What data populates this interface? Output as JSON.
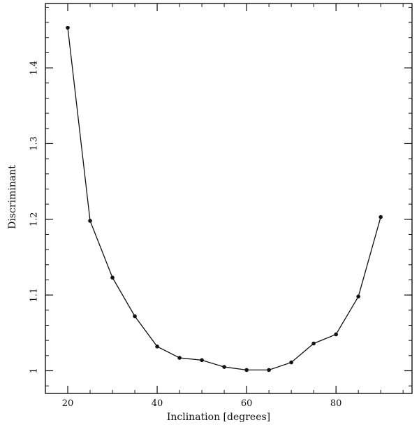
{
  "chart_data": {
    "type": "line",
    "title": "",
    "xlabel": "Inclination [degrees]",
    "ylabel": "Discriminant",
    "xlim": [
      15,
      97
    ],
    "ylim": [
      0.97,
      1.485
    ],
    "xticks": [
      20,
      40,
      60,
      80
    ],
    "xtick_labels": [
      "20",
      "40",
      "60",
      "80"
    ],
    "xminor_step": 5,
    "yticks": [
      1.0,
      1.1,
      1.2,
      1.3,
      1.4
    ],
    "ytick_labels": [
      "1",
      "1.1",
      "1.2",
      "1.3",
      "1.4"
    ],
    "yminor_step": 0.02,
    "grid": false,
    "series": [
      {
        "x": [
          20,
          25,
          30,
          35,
          40,
          45,
          50,
          55,
          60,
          65,
          70,
          75,
          80,
          85,
          90
        ],
        "y": [
          1.453,
          1.198,
          1.123,
          1.072,
          1.032,
          1.017,
          1.014,
          1.005,
          1.001,
          1.001,
          1.011,
          1.036,
          1.048,
          1.098,
          1.203
        ],
        "color": "#111111",
        "marker": "circle"
      }
    ]
  }
}
